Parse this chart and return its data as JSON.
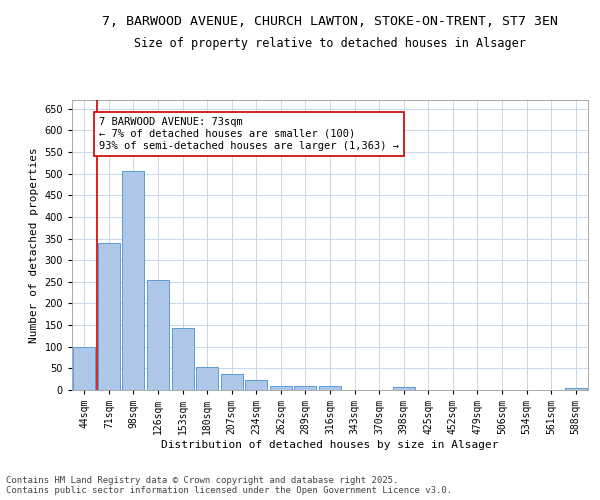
{
  "title_line1": "7, BARWOOD AVENUE, CHURCH LAWTON, STOKE-ON-TRENT, ST7 3EN",
  "title_line2": "Size of property relative to detached houses in Alsager",
  "xlabel": "Distribution of detached houses by size in Alsager",
  "ylabel": "Number of detached properties",
  "categories": [
    "44sqm",
    "71sqm",
    "98sqm",
    "126sqm",
    "153sqm",
    "180sqm",
    "207sqm",
    "234sqm",
    "262sqm",
    "289sqm",
    "316sqm",
    "343sqm",
    "370sqm",
    "398sqm",
    "425sqm",
    "452sqm",
    "479sqm",
    "506sqm",
    "534sqm",
    "561sqm",
    "588sqm"
  ],
  "values": [
    100,
    340,
    507,
    255,
    143,
    53,
    37,
    24,
    10,
    10,
    10,
    0,
    0,
    6,
    0,
    0,
    0,
    0,
    0,
    0,
    5
  ],
  "bar_color": "#aec6e8",
  "bar_edge_color": "#5b9bd5",
  "annotation_box_text": "7 BARWOOD AVENUE: 73sqm\n← 7% of detached houses are smaller (100)\n93% of semi-detached houses are larger (1,363) →",
  "annotation_box_color": "#ffffff",
  "annotation_box_edge_color": "#cc0000",
  "vline_color": "#cc0000",
  "ylim": [
    0,
    670
  ],
  "yticks": [
    0,
    50,
    100,
    150,
    200,
    250,
    300,
    350,
    400,
    450,
    500,
    550,
    600,
    650
  ],
  "grid_color": "#c8d8ea",
  "background_color": "#ffffff",
  "footnote": "Contains HM Land Registry data © Crown copyright and database right 2025.\nContains public sector information licensed under the Open Government Licence v3.0.",
  "title_fontsize": 9.5,
  "subtitle_fontsize": 8.5,
  "axis_label_fontsize": 8,
  "tick_fontsize": 7,
  "annotation_fontsize": 7.5,
  "footnote_fontsize": 6.5
}
